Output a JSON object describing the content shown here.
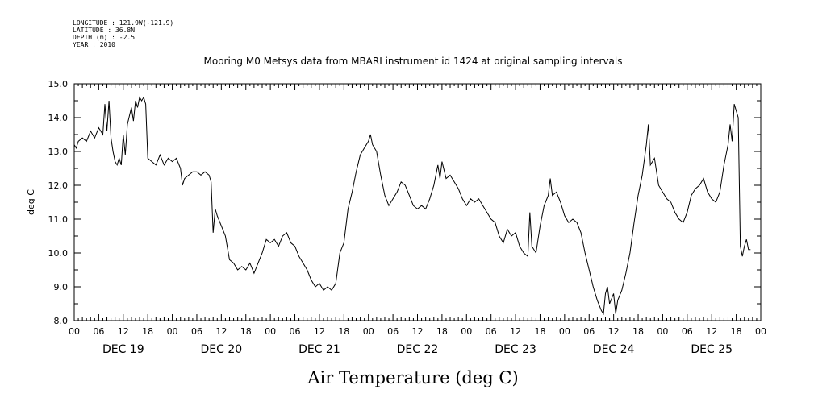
{
  "header": {
    "longitude": "LONGITUDE : 121.9W(-121.9)",
    "latitude": "LATITUDE : 36.8N",
    "depth": "DEPTH (m) : -2.5",
    "year": "YEAR : 2010"
  },
  "chart_data": {
    "type": "line",
    "title": "Mooring M0 Metsys data from MBARI instrument id 1424 at original sampling intervals",
    "xlabel": "Air Temperature (deg C)",
    "ylabel": "deg C",
    "ylim": [
      8.0,
      15.0
    ],
    "y_ticks": [
      "8.0",
      "9.0",
      "10.0",
      "11.0",
      "12.0",
      "13.0",
      "14.0",
      "15.0"
    ],
    "x_range_hours": [
      0,
      168
    ],
    "x_hour_labels": [
      "00",
      "06",
      "12",
      "18",
      "00",
      "06",
      "12",
      "18",
      "00",
      "06",
      "12",
      "18",
      "00",
      "06",
      "12",
      "18",
      "00",
      "06",
      "12",
      "18",
      "00",
      "06",
      "12",
      "18",
      "00",
      "06",
      "12",
      "18",
      "00"
    ],
    "day_labels": [
      "DEC 19",
      "DEC 20",
      "DEC 21",
      "DEC 22",
      "DEC 23",
      "DEC 24",
      "DEC 25"
    ],
    "series": [
      {
        "name": "Air Temperature",
        "points": [
          [
            0,
            13.2
          ],
          [
            0.5,
            13.1
          ],
          [
            1,
            13.3
          ],
          [
            2,
            13.4
          ],
          [
            3,
            13.3
          ],
          [
            4,
            13.6
          ],
          [
            5,
            13.4
          ],
          [
            6,
            13.7
          ],
          [
            7,
            13.5
          ],
          [
            7.5,
            14.4
          ],
          [
            8,
            13.6
          ],
          [
            8.5,
            14.5
          ],
          [
            9,
            13.4
          ],
          [
            9.5,
            13.0
          ],
          [
            10,
            12.7
          ],
          [
            10.5,
            12.6
          ],
          [
            11,
            12.8
          ],
          [
            11.5,
            12.6
          ],
          [
            12,
            13.5
          ],
          [
            12.5,
            12.9
          ],
          [
            13,
            13.8
          ],
          [
            14,
            14.3
          ],
          [
            14.5,
            13.9
          ],
          [
            15,
            14.5
          ],
          [
            15.5,
            14.3
          ],
          [
            16,
            14.6
          ],
          [
            16.5,
            14.5
          ],
          [
            17,
            14.6
          ],
          [
            17.5,
            14.4
          ],
          [
            18,
            12.8
          ],
          [
            19,
            12.7
          ],
          [
            20,
            12.6
          ],
          [
            21,
            12.9
          ],
          [
            22,
            12.6
          ],
          [
            23,
            12.8
          ],
          [
            24,
            12.7
          ],
          [
            25,
            12.8
          ],
          [
            26,
            12.5
          ],
          [
            26.5,
            12.0
          ],
          [
            27,
            12.2
          ],
          [
            28,
            12.3
          ],
          [
            29,
            12.4
          ],
          [
            30,
            12.4
          ],
          [
            31,
            12.3
          ],
          [
            32,
            12.4
          ],
          [
            33,
            12.3
          ],
          [
            33.5,
            12.1
          ],
          [
            34,
            10.6
          ],
          [
            34.5,
            11.3
          ],
          [
            35,
            11.1
          ],
          [
            36,
            10.8
          ],
          [
            37,
            10.5
          ],
          [
            38,
            9.8
          ],
          [
            39,
            9.7
          ],
          [
            40,
            9.5
          ],
          [
            41,
            9.6
          ],
          [
            42,
            9.5
          ],
          [
            43,
            9.7
          ],
          [
            44,
            9.4
          ],
          [
            45,
            9.7
          ],
          [
            46,
            10.0
          ],
          [
            47,
            10.4
          ],
          [
            48,
            10.3
          ],
          [
            49,
            10.4
          ],
          [
            50,
            10.2
          ],
          [
            51,
            10.5
          ],
          [
            52,
            10.6
          ],
          [
            53,
            10.3
          ],
          [
            54,
            10.2
          ],
          [
            55,
            9.9
          ],
          [
            56,
            9.7
          ],
          [
            57,
            9.5
          ],
          [
            58,
            9.2
          ],
          [
            59,
            9.0
          ],
          [
            60,
            9.1
          ],
          [
            61,
            8.9
          ],
          [
            62,
            9.0
          ],
          [
            63,
            8.9
          ],
          [
            64,
            9.1
          ],
          [
            65,
            10.0
          ],
          [
            66,
            10.3
          ],
          [
            67,
            11.3
          ],
          [
            68,
            11.8
          ],
          [
            69,
            12.4
          ],
          [
            70,
            12.9
          ],
          [
            71,
            13.1
          ],
          [
            72,
            13.3
          ],
          [
            72.5,
            13.5
          ],
          [
            73,
            13.2
          ],
          [
            74,
            13.0
          ],
          [
            75,
            12.3
          ],
          [
            76,
            11.7
          ],
          [
            77,
            11.4
          ],
          [
            78,
            11.6
          ],
          [
            79,
            11.8
          ],
          [
            80,
            12.1
          ],
          [
            81,
            12.0
          ],
          [
            82,
            11.7
          ],
          [
            83,
            11.4
          ],
          [
            84,
            11.3
          ],
          [
            85,
            11.4
          ],
          [
            86,
            11.3
          ],
          [
            87,
            11.6
          ],
          [
            88,
            12.0
          ],
          [
            89,
            12.6
          ],
          [
            89.5,
            12.2
          ],
          [
            90,
            12.7
          ],
          [
            91,
            12.2
          ],
          [
            92,
            12.3
          ],
          [
            93,
            12.1
          ],
          [
            94,
            11.9
          ],
          [
            95,
            11.6
          ],
          [
            96,
            11.4
          ],
          [
            97,
            11.6
          ],
          [
            98,
            11.5
          ],
          [
            99,
            11.6
          ],
          [
            100,
            11.4
          ],
          [
            101,
            11.2
          ],
          [
            102,
            11.0
          ],
          [
            103,
            10.9
          ],
          [
            104,
            10.5
          ],
          [
            105,
            10.3
          ],
          [
            106,
            10.7
          ],
          [
            107,
            10.5
          ],
          [
            108,
            10.6
          ],
          [
            109,
            10.2
          ],
          [
            110,
            10.0
          ],
          [
            111,
            9.9
          ],
          [
            111.5,
            11.2
          ],
          [
            112,
            10.2
          ],
          [
            113,
            10.0
          ],
          [
            114,
            10.8
          ],
          [
            115,
            11.4
          ],
          [
            116,
            11.7
          ],
          [
            116.5,
            12.2
          ],
          [
            117,
            11.7
          ],
          [
            118,
            11.8
          ],
          [
            119,
            11.5
          ],
          [
            120,
            11.1
          ],
          [
            121,
            10.9
          ],
          [
            122,
            11.0
          ],
          [
            123,
            10.9
          ],
          [
            124,
            10.6
          ],
          [
            125,
            10.0
          ],
          [
            126,
            9.5
          ],
          [
            127,
            9.0
          ],
          [
            128,
            8.6
          ],
          [
            129,
            8.3
          ],
          [
            129.5,
            8.2
          ],
          [
            130,
            8.8
          ],
          [
            130.5,
            9.0
          ],
          [
            131,
            8.5
          ],
          [
            132,
            8.8
          ],
          [
            132.5,
            8.2
          ],
          [
            133,
            8.6
          ],
          [
            134,
            8.9
          ],
          [
            135,
            9.4
          ],
          [
            136,
            10.0
          ],
          [
            137,
            10.9
          ],
          [
            138,
            11.7
          ],
          [
            139,
            12.3
          ],
          [
            140,
            13.2
          ],
          [
            140.5,
            13.8
          ],
          [
            141,
            12.6
          ],
          [
            142,
            12.8
          ],
          [
            143,
            12.0
          ],
          [
            144,
            11.8
          ],
          [
            145,
            11.6
          ],
          [
            146,
            11.5
          ],
          [
            147,
            11.2
          ],
          [
            148,
            11.0
          ],
          [
            149,
            10.9
          ],
          [
            150,
            11.2
          ],
          [
            151,
            11.7
          ],
          [
            152,
            11.9
          ],
          [
            153,
            12.0
          ],
          [
            154,
            12.2
          ],
          [
            155,
            11.8
          ],
          [
            156,
            11.6
          ],
          [
            157,
            11.5
          ],
          [
            158,
            11.8
          ],
          [
            159,
            12.6
          ],
          [
            160,
            13.2
          ],
          [
            160.5,
            13.8
          ],
          [
            161,
            13.3
          ],
          [
            161.5,
            14.4
          ],
          [
            162,
            14.2
          ],
          [
            162.5,
            14.0
          ],
          [
            163,
            10.2
          ],
          [
            163.5,
            9.9
          ],
          [
            164,
            10.2
          ],
          [
            164.5,
            10.4
          ],
          [
            165,
            10.1
          ],
          [
            165.5,
            10.1
          ]
        ]
      }
    ]
  }
}
